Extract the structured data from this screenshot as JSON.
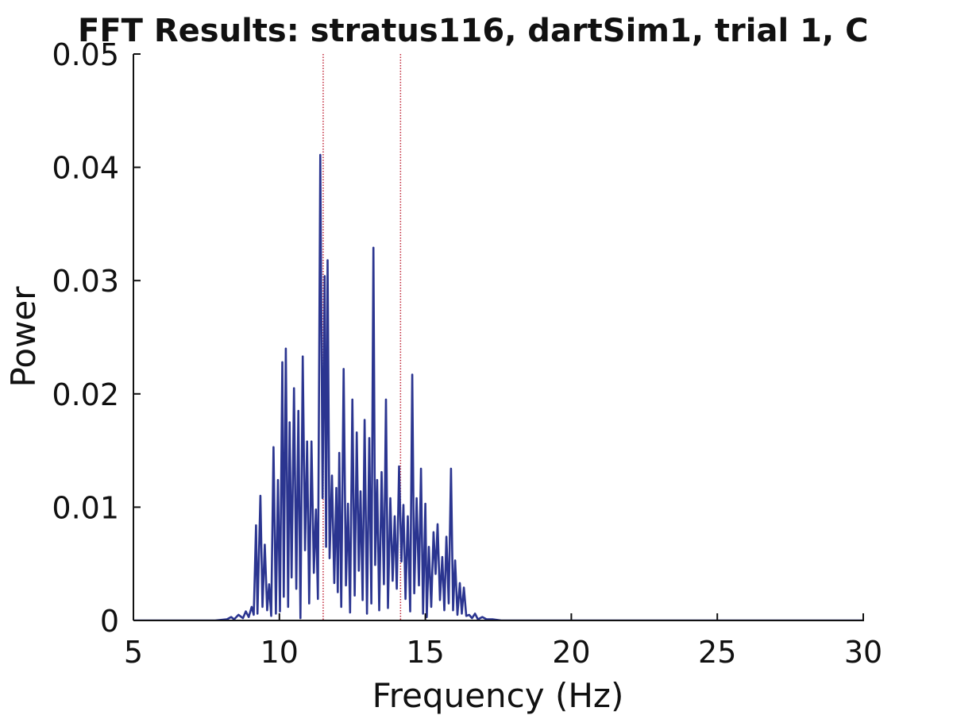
{
  "chart_data": {
    "type": "line",
    "title": "FFT Results: stratus116, dartSim1, trial 1, C",
    "xlabel": "Frequency (Hz)",
    "ylabel": "Power",
    "xlim": [
      5,
      30
    ],
    "ylim": [
      0,
      0.05
    ],
    "xticks": [
      "5",
      "10",
      "15",
      "20",
      "25",
      "30"
    ],
    "yticks": [
      "0",
      "0.01",
      "0.02",
      "0.03",
      "0.04",
      "0.05"
    ],
    "grid": false,
    "line_color": "#2b3590",
    "marker_color": "#c0283a",
    "markers_x": [
      11.5,
      14.15
    ],
    "series": [
      {
        "x": [
          5,
          7.8,
          8.2,
          8.35,
          8.45,
          8.6,
          8.75,
          8.85,
          8.95,
          9.05,
          9.12,
          9.2,
          9.25,
          9.35,
          9.42,
          9.5,
          9.58,
          9.65,
          9.72,
          9.8,
          9.88,
          9.95,
          10.02,
          10.1,
          10.15,
          10.22,
          10.3,
          10.35,
          10.42,
          10.5,
          10.58,
          10.65,
          10.72,
          10.8,
          10.88,
          10.95,
          11.02,
          11.1,
          11.18,
          11.25,
          11.32,
          11.4,
          11.48,
          11.55,
          11.6,
          11.65,
          11.72,
          11.8,
          11.88,
          11.95,
          12.0,
          12.05,
          12.12,
          12.2,
          12.28,
          12.35,
          12.42,
          12.5,
          12.58,
          12.65,
          12.72,
          12.78,
          12.85,
          12.92,
          13.0,
          13.08,
          13.15,
          13.22,
          13.28,
          13.35,
          13.42,
          13.5,
          13.58,
          13.65,
          13.72,
          13.8,
          13.88,
          13.95,
          14.02,
          14.1,
          14.18,
          14.25,
          14.32,
          14.4,
          14.48,
          14.55,
          14.62,
          14.7,
          14.78,
          14.85,
          14.92,
          15.0,
          15.05,
          15.12,
          15.2,
          15.28,
          15.35,
          15.42,
          15.5,
          15.58,
          15.65,
          15.72,
          15.8,
          15.88,
          15.95,
          16.02,
          16.1,
          16.18,
          16.25,
          16.32,
          16.4,
          16.5,
          16.6,
          16.7,
          16.8,
          16.95,
          17.1,
          17.3,
          17.6,
          18.0,
          19.0,
          22.0,
          26.0,
          30.0
        ],
        "y": [
          0,
          0,
          0.0001,
          0.0003,
          0.0001,
          0.0005,
          0.0002,
          0.0008,
          0.0003,
          0.0012,
          0.0005,
          0.0084,
          0.0006,
          0.011,
          0.0012,
          0.0067,
          0.0009,
          0.0032,
          0.0004,
          0.0153,
          0.0006,
          0.0124,
          0.0008,
          0.0228,
          0.0021,
          0.024,
          0.0012,
          0.0175,
          0.0038,
          0.0205,
          0.0028,
          0.0185,
          0.0002,
          0.0233,
          0.0062,
          0.0158,
          0.0015,
          0.0158,
          0.0042,
          0.0098,
          0.0019,
          0.0411,
          0.0108,
          0.0304,
          0.0065,
          0.0318,
          0.0055,
          0.0128,
          0.0033,
          0.0117,
          0.0025,
          0.0148,
          0.0012,
          0.0222,
          0.0031,
          0.0103,
          0.0007,
          0.0195,
          0.0022,
          0.0166,
          0.0044,
          0.0114,
          0.0018,
          0.0177,
          0.0006,
          0.0161,
          0.0015,
          0.0329,
          0.0049,
          0.0124,
          0.0009,
          0.0131,
          0.0032,
          0.0195,
          0.0011,
          0.0108,
          0.0035,
          0.0092,
          0.0028,
          0.0136,
          0.0052,
          0.0102,
          0.0019,
          0.0092,
          0.0008,
          0.0217,
          0.0024,
          0.0108,
          0.0031,
          0.0134,
          0.0006,
          0.0103,
          0.0003,
          0.0065,
          0.0012,
          0.0078,
          0.0041,
          0.0085,
          0.0018,
          0.0056,
          0.0009,
          0.0074,
          0.0015,
          0.0134,
          0.0009,
          0.0053,
          0.0005,
          0.0033,
          0.0006,
          0.0029,
          0.0004,
          0.0005,
          0.0002,
          0.0006,
          0.0001,
          0.0003,
          0.0001,
          0.0001,
          0,
          0,
          0,
          0,
          0,
          0
        ]
      }
    ]
  }
}
